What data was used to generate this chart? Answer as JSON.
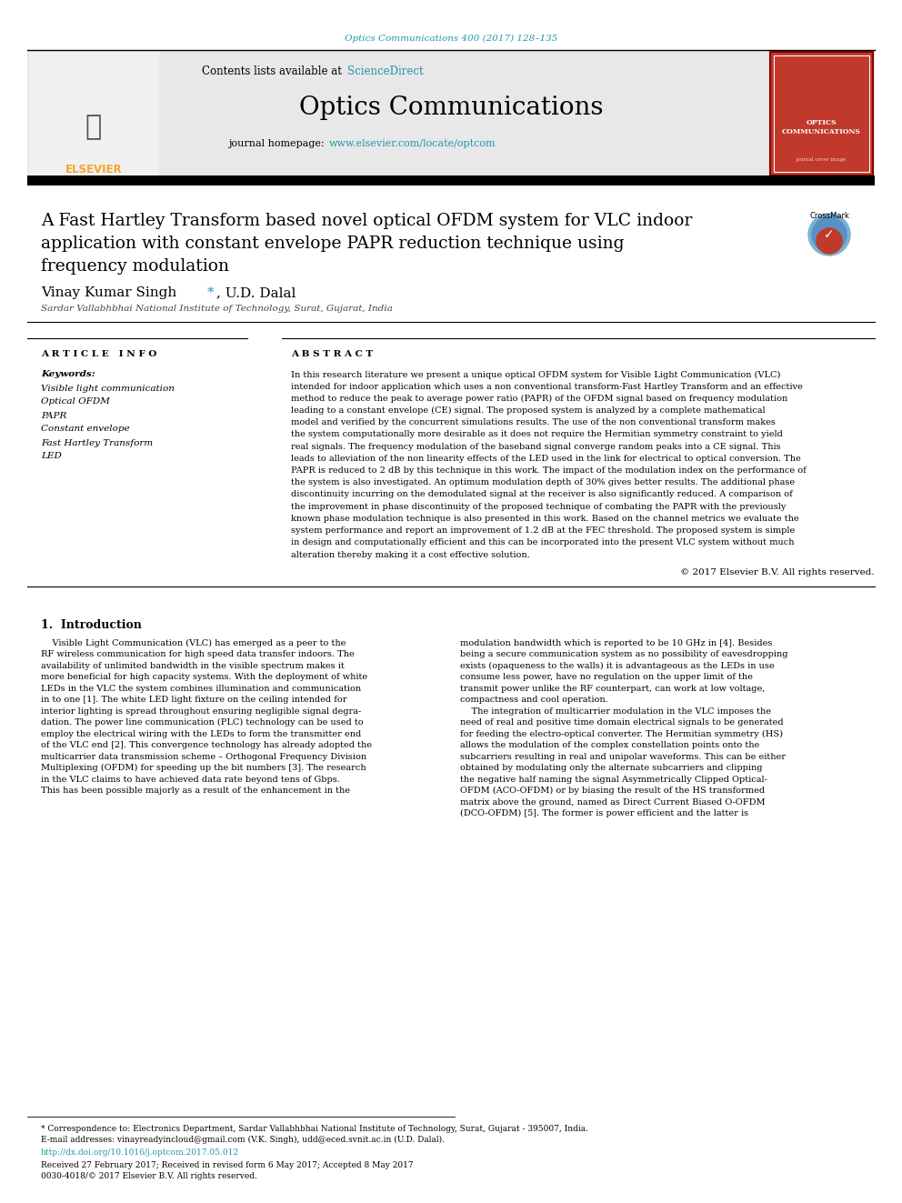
{
  "page_bg": "#ffffff",
  "top_citation": "Optics Communications 400 (2017) 128–135",
  "top_citation_color": "#2196a8",
  "journal_name": "Optics Communications",
  "contents_line": "Contents lists available at ",
  "sciencedirect_text": "ScienceDirect",
  "sciencedirect_color": "#2196a8",
  "journal_homepage_prefix": "journal homepage: ",
  "journal_url": "www.elsevier.com/locate/optcom",
  "journal_url_color": "#2196a8",
  "header_bg": "#e8e8e8",
  "paper_title_line1": "A Fast Hartley Transform based novel optical OFDM system for VLC indoor",
  "paper_title_line2": "application with constant envelope PAPR reduction technique using",
  "paper_title_line3": "frequency modulation",
  "authors_star_color": "#2196a8",
  "affiliation": "Sardar Vallabhbhai National Institute of Technology, Surat, Gujarat, India",
  "article_info_header": "A R T I C L E   I N F O",
  "abstract_header": "A B S T R A C T",
  "keywords_header": "Keywords:",
  "keywords": [
    "Visible light communication",
    "Optical OFDM",
    "PAPR",
    "Constant envelope",
    "Fast Hartley Transform",
    "LED"
  ],
  "copyright_text": "© 2017 Elsevier B.V. All rights reserved.",
  "section1_title": "1.  Introduction",
  "abstract_lines": [
    "In this research literature we present a unique optical OFDM system for Visible Light Communication (VLC)",
    "intended for indoor application which uses a non conventional transform-Fast Hartley Transform and an effective",
    "method to reduce the peak to average power ratio (PAPR) of the OFDM signal based on frequency modulation",
    "leading to a constant envelope (CE) signal. The proposed system is analyzed by a complete mathematical",
    "model and verified by the concurrent simulations results. The use of the non conventional transform makes",
    "the system computationally more desirable as it does not require the Hermitian symmetry constraint to yield",
    "real signals. The frequency modulation of the baseband signal converge random peaks into a CE signal. This",
    "leads to alleviation of the non linearity effects of the LED used in the link for electrical to optical conversion. The",
    "PAPR is reduced to 2 dB by this technique in this work. The impact of the modulation index on the performance of",
    "the system is also investigated. An optimum modulation depth of 30% gives better results. The additional phase",
    "discontinuity incurring on the demodulated signal at the receiver is also significantly reduced. A comparison of",
    "the improvement in phase discontinuity of the proposed technique of combating the PAPR with the previously",
    "known phase modulation technique is also presented in this work. Based on the channel metrics we evaluate the",
    "system performance and report an improvement of 1.2 dB at the FEC threshold. The proposed system is simple",
    "in design and computationally efficient and this can be incorporated into the present VLC system without much",
    "alteration thereby making it a cost effective solution."
  ],
  "col1_lines": [
    "    Visible Light Communication (VLC) has emerged as a peer to the",
    "RF wireless communication for high speed data transfer indoors. The",
    "availability of unlimited bandwidth in the visible spectrum makes it",
    "more beneficial for high capacity systems. With the deployment of white",
    "LEDs in the VLC the system combines illumination and communication",
    "in to one [1]. The white LED light fixture on the ceiling intended for",
    "interior lighting is spread throughout ensuring negligible signal degra-",
    "dation. The power line communication (PLC) technology can be used to",
    "employ the electrical wiring with the LEDs to form the transmitter end",
    "of the VLC end [2]. This convergence technology has already adopted the",
    "multicarrier data transmission scheme – Orthogonal Frequency Division",
    "Multiplexing (OFDM) for speeding up the bit numbers [3]. The research",
    "in the VLC claims to have achieved data rate beyond tens of Gbps.",
    "This has been possible majorly as a result of the enhancement in the"
  ],
  "col2_lines": [
    "modulation bandwidth which is reported to be 10 GHz in [4]. Besides",
    "being a secure communication system as no possibility of eavesdropping",
    "exists (opaqueness to the walls) it is advantageous as the LEDs in use",
    "consume less power, have no regulation on the upper limit of the",
    "transmit power unlike the RF counterpart, can work at low voltage,",
    "compactness and cool operation.",
    "    The integration of multicarrier modulation in the VLC imposes the",
    "need of real and positive time domain electrical signals to be generated",
    "for feeding the electro-optical converter. The Hermitian symmetry (HS)",
    "allows the modulation of the complex constellation points onto the",
    "subcarriers resulting in real and unipolar waveforms. This can be either",
    "obtained by modulating only the alternate subcarriers and clipping",
    "the negative half naming the signal Asymmetrically Clipped Optical-",
    "OFDM (ACO-OFDM) or by biasing the result of the HS transformed",
    "matrix above the ground, named as Direct Current Biased O-OFDM",
    "(DCO-OFDM) [5]. The former is power efficient and the latter is"
  ],
  "footnote_star": "* Correspondence to: Electronics Department, Sardar Vallabhbhai National Institute of Technology, Surat, Gujarat - 395007, India.",
  "footnote_email": "E-mail addresses: vinayreadyincloud@gmail.com (V.K. Singh), udd@eced.svnit.ac.in (U.D. Dalal).",
  "doi_text": "http://dx.doi.org/10.1016/j.optcom.2017.05.012",
  "doi_color": "#2196a8",
  "received_text": "Received 27 February 2017; Received in revised form 6 May 2017; Accepted 8 May 2017",
  "issn_text": "0030-4018/© 2017 Elsevier B.V. All rights reserved.",
  "elsevier_color": "#f4a52a"
}
